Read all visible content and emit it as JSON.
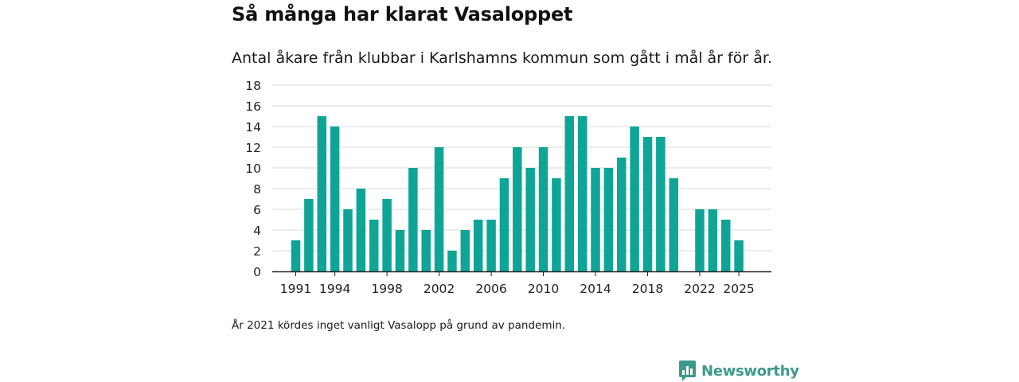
{
  "chart_data": {
    "type": "bar",
    "title": "Så många har klarat Vasaloppet",
    "subtitle": "Antal åkare från klubbar i Karlshamns kommun som gått i mål år för år.",
    "xlabel": "",
    "ylabel": "",
    "categories": [
      "1991",
      "1992",
      "1993",
      "1994",
      "1995",
      "1996",
      "1997",
      "1998",
      "1999",
      "2000",
      "2001",
      "2002",
      "2003",
      "2004",
      "2005",
      "2006",
      "2007",
      "2008",
      "2009",
      "2010",
      "2011",
      "2012",
      "2013",
      "2014",
      "2015",
      "2016",
      "2017",
      "2018",
      "2019",
      "2020",
      "2021",
      "2022",
      "2023",
      "2024",
      "2025"
    ],
    "values": [
      3,
      7,
      15,
      14,
      6,
      8,
      5,
      7,
      4,
      10,
      4,
      12,
      2,
      4,
      5,
      5,
      9,
      12,
      10,
      12,
      9,
      15,
      15,
      10,
      10,
      11,
      14,
      13,
      13,
      9,
      null,
      6,
      6,
      5,
      3
    ],
    "x_tick_labels": [
      "1991",
      "1994",
      "1998",
      "2002",
      "2006",
      "2010",
      "2014",
      "2018",
      "2022",
      "2025"
    ],
    "y_tick_labels": [
      "0",
      "2",
      "4",
      "6",
      "8",
      "10",
      "12",
      "14",
      "16",
      "18"
    ],
    "ylim": [
      0,
      18
    ],
    "grid": true,
    "legend": "none",
    "bar_color": "#0ea597",
    "grid_color": "#d9d9d9",
    "axis_color": "#222222"
  },
  "footnote": "År 2021 kördes inget vanligt Vasalopp på grund av pandemin.",
  "brand": {
    "name": "Newsworthy",
    "icon": "newsworthy-logo-icon",
    "color": "#3a9a8c"
  }
}
